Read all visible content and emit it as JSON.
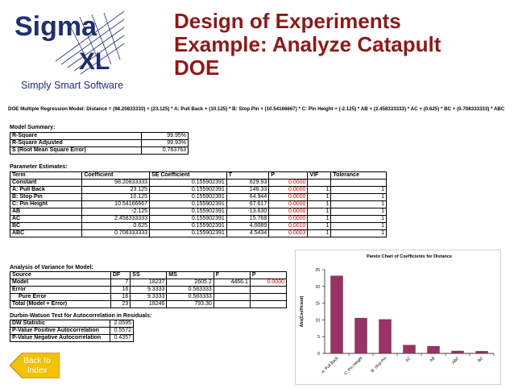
{
  "logo": {
    "line1": "Sigma",
    "line2": "XL",
    "tagline": "Simply Smart Software"
  },
  "title": {
    "line1": "Design of Experiments",
    "line2": "Example: Analyze Catapult",
    "line3": "DOE"
  },
  "equation": "DOE Multiple Regression Model: Distance = (98.20833333) + (23.125) * A: Pull Back + (10.125) * B: Stop Pin + (10.54166667) * C: Pin Height + (-2.125) * AB + (2.458333333) * AC + (0.625) * BC + (0.708333333) * ABC",
  "model_summary": {
    "heading": "Model Summary:",
    "rows": [
      {
        "label": "R-Square",
        "value": "99.95%"
      },
      {
        "label": "R-Square Adjusted",
        "value": "99.93%"
      },
      {
        "label": "S (Root Mean Square Error)",
        "value": "0.763763"
      }
    ]
  },
  "parameter_estimates": {
    "heading": "Parameter Estimates:",
    "columns": [
      "Term",
      "Coefficient",
      "SE Coefficient",
      "T",
      "P",
      "VIF",
      "Tolerance"
    ],
    "rows": [
      [
        "Constant",
        "98.20833333",
        "0.155902391",
        "629.93",
        "0.0000",
        "",
        ""
      ],
      [
        "A: Pull Back",
        "23.125",
        "0.155902391",
        "148.33",
        "0.0000",
        "1",
        "1"
      ],
      [
        "B: Stop Pin",
        "10.125",
        "0.155902391",
        "64.944",
        "0.0000",
        "1",
        "1"
      ],
      [
        "C: Pin Height",
        "10.54166667",
        "0.155902391",
        "67.617",
        "0.0000",
        "1",
        "1"
      ],
      [
        "AB",
        "-2.125",
        "0.155902391",
        "-13.630",
        "0.0000",
        "1",
        "1"
      ],
      [
        "AC",
        "2.458333333",
        "0.155902391",
        "15.768",
        "0.0000",
        "1",
        "1"
      ],
      [
        "BC",
        "0.625",
        "0.155902391",
        "4.0089",
        "0.0010",
        "1",
        "1"
      ],
      [
        "ABC",
        "0.708333333",
        "0.155902391",
        "4.5434",
        "0.0003",
        "1",
        "1"
      ]
    ]
  },
  "anova": {
    "heading": "Analysis of Variance for Model:",
    "columns": [
      "Source",
      "DF",
      "SS",
      "MS",
      "F",
      "P"
    ],
    "rows": [
      [
        "Model",
        "7",
        "18237",
        "2605.2",
        "4466.1",
        "0.0000"
      ],
      [
        "Error",
        "16",
        "9.3333",
        "0.583333",
        "",
        ""
      ],
      [
        "Pure Error",
        "16",
        "9.3333",
        "0.583333",
        "",
        ""
      ],
      [
        "Total (Model + Error)",
        "23",
        "18246",
        "793.30",
        "",
        ""
      ]
    ]
  },
  "durbin_watson": {
    "heading": "Durbin-Watson Test for Autocorrelation in Residuals:",
    "rows": [
      {
        "label": "DW Statistic",
        "value": "2.0595"
      },
      {
        "label": "P-Value Positive Autocorrelation",
        "value": "0.5572"
      },
      {
        "label": "P-Value Negative Autocorrelation",
        "value": "0.4357"
      }
    ]
  },
  "back_button": {
    "line1": "Back to",
    "line2": "Index"
  },
  "colors": {
    "title": "#8b1a1a",
    "bar": "#993366",
    "p_value": "#e00000",
    "button": "#f2c200"
  },
  "chart_data": {
    "type": "bar",
    "title": "Pareto Chart of Coefficients for Distance",
    "ylabel": "Abs(Coefficient)",
    "xlabel": "",
    "categories": [
      "A: Pull Back",
      "C: Pin Height",
      "B: Stop Pin",
      "AC",
      "AB",
      "ABC",
      "BC"
    ],
    "values": [
      23.125,
      10.5417,
      10.125,
      2.4583,
      2.125,
      0.7083,
      0.625
    ],
    "ylim": [
      0,
      25
    ],
    "yticks": [
      "0",
      "5",
      "10",
      "15",
      "20",
      "25"
    ],
    "grid": false,
    "legend": "none"
  }
}
